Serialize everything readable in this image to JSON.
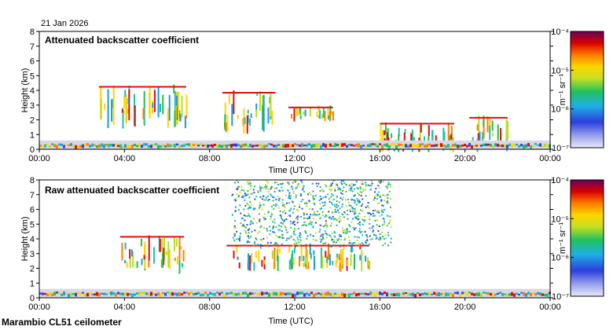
{
  "date_label": "21 Jan 2026",
  "footer_label": "Marambio CL51 ceilometer",
  "colorbar": {
    "unit_label": "m⁻¹ sr⁻¹",
    "tick_labels": [
      "10⁻⁴",
      "10⁻⁵",
      "10⁻⁶",
      "10⁻⁷"
    ],
    "tick_values": [
      -4,
      -5,
      -6,
      -7
    ],
    "range_log10": [
      -7,
      -4
    ]
  },
  "chart_data": [
    {
      "type": "heatmap",
      "title": "Attenuated backscatter coefficient",
      "xlabel": "Time (UTC)",
      "ylabel": "Height (km)",
      "x_tick_labels": [
        "00:00",
        "04:00",
        "08:00",
        "12:00",
        "16:00",
        "20:00",
        "00:00"
      ],
      "x_tick_hours": [
        0,
        4,
        8,
        12,
        16,
        20,
        24
      ],
      "y_ticks": [
        0,
        1,
        2,
        3,
        4,
        5,
        6,
        7,
        8
      ],
      "xlim_hours": [
        0,
        24
      ],
      "ylim_km": [
        0,
        8
      ],
      "features": [
        {
          "name": "cloud",
          "t0": 2.8,
          "t1": 6.9,
          "h0": 1.6,
          "h1": 4.4
        },
        {
          "name": "cloud",
          "t0": 8.6,
          "t1": 11.1,
          "h0": 1.2,
          "h1": 4.0
        },
        {
          "name": "cloud",
          "t0": 11.7,
          "t1": 13.8,
          "h0": 2.1,
          "h1": 3.0
        },
        {
          "name": "cloud",
          "t0": 16.0,
          "t1": 19.5,
          "h0": 0.0,
          "h1": 1.9
        },
        {
          "name": "cloud",
          "t0": 20.2,
          "t1": 22.0,
          "h0": 0.0,
          "h1": 2.3
        },
        {
          "name": "surface-layer",
          "t0": 0.0,
          "t1": 24.0,
          "h0": 0.0,
          "h1": 0.6
        }
      ]
    },
    {
      "type": "heatmap",
      "title": "Raw attenuated backscatter coefficient",
      "xlabel": "Time (UTC)",
      "ylabel": "Height (km)",
      "x_tick_labels": [
        "00:00",
        "04:00",
        "08:00",
        "12:00",
        "16:00",
        "20:00",
        "00:00"
      ],
      "x_tick_hours": [
        0,
        4,
        8,
        12,
        16,
        20,
        24
      ],
      "y_ticks": [
        0,
        1,
        2,
        3,
        4,
        5,
        6,
        7,
        8
      ],
      "xlim_hours": [
        0,
        24
      ],
      "ylim_km": [
        0,
        8
      ],
      "features": [
        {
          "name": "cloud",
          "t0": 3.8,
          "t1": 6.8,
          "h0": 1.8,
          "h1": 4.3
        },
        {
          "name": "cloud",
          "t0": 8.8,
          "t1": 15.5,
          "h0": 2.0,
          "h1": 3.7
        },
        {
          "name": "noise-band",
          "t0": 9.0,
          "t1": 16.5,
          "h0": 3.5,
          "h1": 8.0
        },
        {
          "name": "surface-layer",
          "t0": 0.0,
          "t1": 24.0,
          "h0": 0.0,
          "h1": 0.6
        }
      ]
    }
  ]
}
